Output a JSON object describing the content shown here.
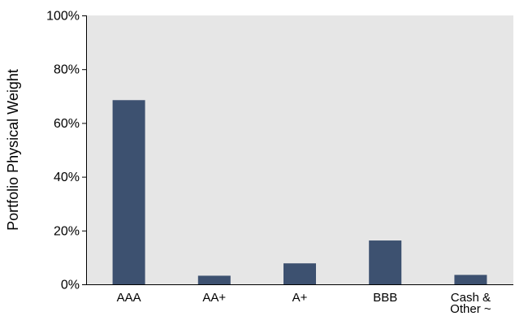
{
  "colors": {
    "plot_background": "#e6e6e6",
    "bar_fill": "#3d5170",
    "axis_line": "#000000"
  },
  "chart_data": {
    "type": "bar",
    "ylabel": "Portfolio Physical Weight",
    "xlabel": "",
    "ylim": [
      0,
      100
    ],
    "y_ticks": [
      0,
      20,
      40,
      60,
      80,
      100
    ],
    "y_tick_labels": [
      "0%",
      "20%",
      "40%",
      "60%",
      "80%",
      "100%"
    ],
    "grid": false,
    "categories": [
      {
        "label": "AAA",
        "lines": [
          "AAA"
        ]
      },
      {
        "label": "AA+",
        "lines": [
          "AA+"
        ]
      },
      {
        "label": "A+",
        "lines": [
          "A+"
        ]
      },
      {
        "label": "BBB",
        "lines": [
          "BBB"
        ]
      },
      {
        "label": "Cash & Other ~",
        "lines": [
          "Cash &",
          "Other ~"
        ]
      }
    ],
    "values": [
      68.5,
      3.2,
      7.8,
      16.3,
      3.5
    ]
  }
}
